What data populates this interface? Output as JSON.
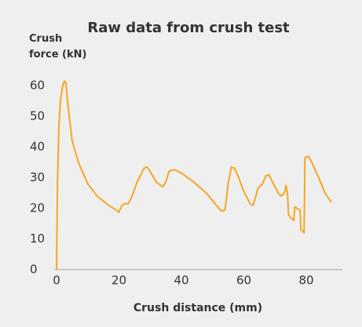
{
  "chart_data": {
    "type": "line",
    "title": "Raw data from crush test",
    "y_label": "Crush force (kN)",
    "x_label": "Crush distance (mm)",
    "xlim": [
      0,
      90
    ],
    "ylim": [
      0,
      65
    ],
    "xticks": [
      0,
      20,
      40,
      60,
      80
    ],
    "yticks": [
      0,
      10,
      20,
      30,
      40,
      50,
      60
    ],
    "series": [
      {
        "name": "Crush force",
        "color": "#f5a623",
        "x": [
          0,
          0.3,
          0.7,
          1.2,
          2,
          2.5,
          3,
          3.5,
          5,
          7,
          10,
          13,
          16,
          19,
          20,
          20.5,
          21,
          22,
          23,
          24,
          26,
          28,
          29,
          30,
          32,
          34,
          35,
          36,
          37,
          38,
          40,
          44,
          48,
          52,
          53,
          54,
          55,
          56,
          57,
          58,
          60,
          62,
          63,
          64,
          64.5,
          65,
          66,
          67,
          68,
          69,
          70,
          71,
          72,
          73,
          73.5,
          74,
          74.3,
          75,
          76,
          76.3,
          77,
          78,
          78.3,
          79,
          79.3,
          79.6,
          80.5,
          81,
          82,
          84,
          86,
          88
        ],
        "values": [
          0,
          28,
          45,
          55,
          60,
          61.5,
          61,
          55,
          42,
          35,
          28,
          24,
          21.5,
          19.5,
          18.7,
          20,
          21,
          21.5,
          21.5,
          23.5,
          29,
          33,
          33.5,
          32,
          28.5,
          27,
          28.5,
          32,
          32.5,
          32.5,
          31.5,
          28.5,
          25,
          20,
          19,
          19.5,
          28,
          33.5,
          33,
          31,
          25.5,
          21.5,
          21,
          24.5,
          26.5,
          27,
          28,
          30.5,
          31,
          29,
          27,
          25,
          24,
          25,
          27.5,
          25,
          18,
          17,
          16,
          20.5,
          20,
          19.5,
          13,
          12.5,
          12,
          36.5,
          37,
          36.5,
          34.5,
          30,
          25,
          22
        ]
      }
    ]
  }
}
